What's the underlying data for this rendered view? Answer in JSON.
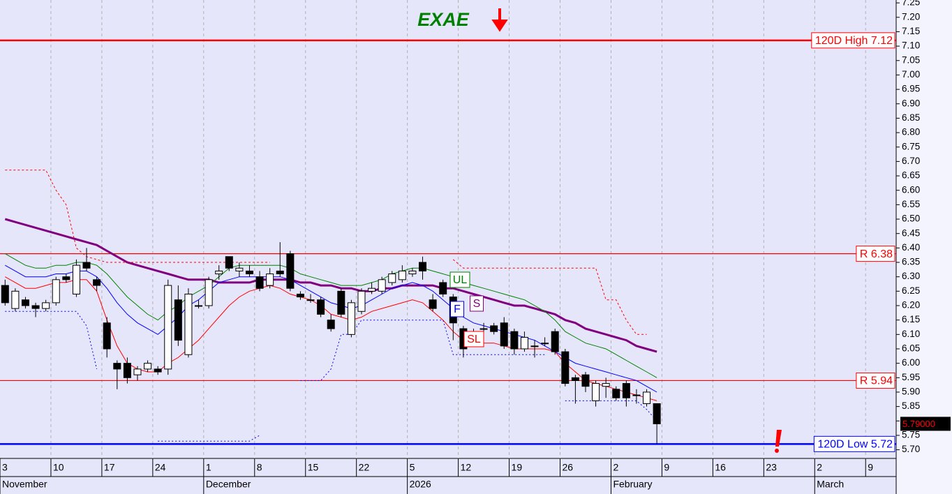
{
  "chart_data": {
    "type": "candlestick",
    "title": "EXAE",
    "categories": [
      "3",
      null,
      null,
      null,
      null,
      "10",
      null,
      null,
      null,
      null,
      "17",
      null,
      null,
      null,
      null,
      "24",
      null,
      null,
      null,
      null,
      "1",
      null,
      null,
      null,
      null,
      "8",
      null,
      null,
      null,
      null,
      "15",
      null,
      null,
      null,
      null,
      "22",
      null,
      null,
      null,
      null,
      "5",
      null,
      null,
      null,
      null,
      "12",
      null,
      null,
      null,
      null,
      "19",
      null,
      null,
      null,
      null,
      "26",
      null,
      null,
      null,
      null,
      "2",
      null,
      null,
      null,
      null,
      "9",
      null,
      null,
      null,
      null,
      "16",
      null,
      null,
      null,
      null,
      "23",
      null,
      null,
      null,
      null,
      "2",
      null,
      null,
      null,
      null,
      "9",
      null,
      null
    ],
    "months": [
      "November",
      null,
      null,
      null,
      null,
      null,
      null,
      null,
      null,
      null,
      null,
      null,
      null,
      null,
      null,
      null,
      null,
      null,
      null,
      null,
      "December",
      null,
      null,
      null,
      null,
      null,
      null,
      null,
      null,
      null,
      null,
      null,
      null,
      null,
      null,
      null,
      null,
      null,
      null,
      null,
      "2026",
      null,
      null,
      null,
      null,
      null,
      null,
      null,
      null,
      null,
      null,
      null,
      null,
      null,
      null,
      null,
      null,
      null,
      null,
      null,
      "February",
      null,
      null,
      null,
      null,
      null,
      null,
      null,
      null,
      null,
      null,
      null,
      null,
      null,
      null,
      null,
      null,
      null,
      null,
      null,
      "March",
      null,
      null,
      null,
      null,
      null,
      null,
      null
    ],
    "open": [
      6.27,
      6.19,
      6.22,
      6.2,
      6.19,
      6.21,
      6.3,
      6.24,
      6.35,
      6.29,
      6.14,
      6.0,
      6.0,
      5.96,
      5.98,
      5.98,
      5.98,
      6.22,
      6.03,
      6.2,
      6.2,
      6.31,
      6.37,
      6.32,
      6.32,
      6.3,
      6.27,
      6.32,
      6.38,
      6.24,
      6.22,
      6.22,
      6.15,
      6.25,
      6.1,
      6.18,
      6.25,
      6.25,
      6.28,
      6.29,
      6.31,
      6.35,
      6.22,
      6.28,
      6.23,
      6.12,
      6.07,
      6.12,
      6.13,
      6.14,
      6.11,
      6.05,
      6.06,
      6.07,
      6.11,
      6.04,
      5.95,
      5.96,
      5.87,
      5.92,
      5.91,
      5.93,
      5.89,
      5.86,
      5.86,
      null,
      null,
      null,
      null,
      null,
      null,
      null,
      null,
      null,
      null,
      null,
      null,
      null,
      null,
      null,
      null,
      null,
      null,
      null,
      null,
      null,
      null,
      null
    ],
    "high": [
      6.29,
      6.26,
      6.23,
      6.21,
      6.22,
      6.3,
      6.31,
      6.36,
      6.4,
      6.3,
      6.16,
      6.01,
      6.02,
      5.99,
      6.01,
      5.99,
      6.29,
      6.27,
      6.26,
      6.22,
      6.3,
      6.34,
      6.37,
      6.35,
      6.34,
      6.32,
      6.33,
      6.42,
      6.39,
      6.25,
      6.24,
      6.23,
      6.17,
      6.26,
      6.22,
      6.26,
      6.28,
      6.3,
      6.32,
      6.34,
      6.33,
      6.37,
      6.24,
      6.29,
      6.24,
      6.13,
      6.12,
      6.14,
      6.14,
      6.16,
      6.12,
      6.11,
      6.08,
      6.09,
      6.12,
      6.05,
      5.96,
      5.97,
      5.94,
      5.95,
      5.92,
      5.94,
      5.91,
      5.91,
      5.86,
      null,
      null,
      null,
      null,
      null,
      null,
      null,
      null,
      null,
      null,
      null,
      null,
      null,
      null,
      null,
      null,
      null,
      null,
      null,
      null,
      null,
      null,
      null
    ],
    "low": [
      6.2,
      6.18,
      6.19,
      6.16,
      6.18,
      6.2,
      6.28,
      6.23,
      6.32,
      6.25,
      6.02,
      5.91,
      5.93,
      5.94,
      5.97,
      5.96,
      5.96,
      6.06,
      6.02,
      6.19,
      6.19,
      6.29,
      6.32,
      6.3,
      6.3,
      6.25,
      6.26,
      6.3,
      6.25,
      6.22,
      6.21,
      6.16,
      6.11,
      6.16,
      6.09,
      6.17,
      6.24,
      6.24,
      6.27,
      6.28,
      6.3,
      6.29,
      6.18,
      6.23,
      6.08,
      6.02,
      6.06,
      6.11,
      6.1,
      6.05,
      6.03,
      6.04,
      6.02,
      6.06,
      6.03,
      5.92,
      5.86,
      5.9,
      5.85,
      5.88,
      5.87,
      5.85,
      5.86,
      5.85,
      5.72,
      null,
      null,
      null,
      null,
      null,
      null,
      null,
      null,
      null,
      null,
      null,
      null,
      null,
      null,
      null,
      null,
      null,
      null,
      null,
      null,
      null,
      null,
      null
    ],
    "close": [
      6.21,
      6.25,
      6.2,
      6.19,
      6.21,
      6.29,
      6.29,
      6.34,
      6.33,
      6.27,
      6.05,
      5.98,
      5.95,
      5.98,
      6.0,
      5.97,
      6.27,
      6.08,
      6.24,
      6.2,
      6.29,
      6.32,
      6.33,
      6.33,
      6.31,
      6.26,
      6.31,
      6.31,
      6.26,
      6.23,
      6.22,
      6.17,
      6.12,
      6.17,
      6.21,
      6.25,
      6.26,
      6.29,
      6.31,
      6.32,
      6.32,
      6.32,
      6.19,
      6.24,
      6.14,
      6.05,
      6.11,
      6.12,
      6.11,
      6.06,
      6.05,
      6.09,
      6.06,
      6.07,
      6.04,
      5.93,
      5.94,
      5.92,
      5.93,
      5.93,
      5.88,
      5.88,
      5.89,
      5.9,
      5.79,
      null,
      null,
      null,
      null,
      null,
      null,
      null,
      null,
      null,
      null,
      null,
      null,
      null,
      null,
      null,
      null,
      null,
      null,
      null,
      null,
      null,
      null,
      null
    ],
    "series": [
      {
        "name": "S",
        "color": "#800080",
        "width": 3,
        "values": [
          6.5,
          6.49,
          6.48,
          6.47,
          6.46,
          6.45,
          6.44,
          6.43,
          6.42,
          6.41,
          6.39,
          6.37,
          6.35,
          6.34,
          6.33,
          6.32,
          6.31,
          6.3,
          6.29,
          6.29,
          6.29,
          6.28,
          6.28,
          6.28,
          6.28,
          6.29,
          6.29,
          6.29,
          6.29,
          6.28,
          6.28,
          6.27,
          6.27,
          6.26,
          6.26,
          6.25,
          6.25,
          6.26,
          6.26,
          6.27,
          6.27,
          6.27,
          6.27,
          6.26,
          6.26,
          6.25,
          6.24,
          6.23,
          6.22,
          6.21,
          6.2,
          6.2,
          6.19,
          6.18,
          6.17,
          6.15,
          6.14,
          6.12,
          6.11,
          6.1,
          6.09,
          6.08,
          6.06,
          6.05,
          6.04,
          null,
          null,
          null,
          null,
          null,
          null,
          null,
          null,
          null,
          null,
          null,
          null,
          null,
          null,
          null,
          null,
          null,
          null,
          null,
          null,
          null,
          null,
          null
        ]
      },
      {
        "name": "UL",
        "color": "#008000",
        "width": 1,
        "values": [
          6.38,
          6.36,
          6.34,
          6.33,
          6.33,
          6.34,
          6.34,
          6.35,
          6.35,
          6.34,
          6.31,
          6.27,
          6.23,
          6.2,
          6.17,
          6.15,
          6.18,
          6.2,
          6.23,
          6.25,
          6.27,
          6.3,
          6.33,
          6.34,
          6.34,
          6.34,
          6.34,
          6.34,
          6.33,
          6.31,
          6.3,
          6.29,
          6.28,
          6.27,
          6.27,
          6.27,
          6.28,
          6.29,
          6.31,
          6.32,
          6.33,
          6.33,
          6.32,
          6.31,
          6.3,
          6.28,
          6.27,
          6.26,
          6.25,
          6.24,
          6.23,
          6.22,
          6.2,
          6.18,
          6.15,
          6.11,
          6.09,
          6.07,
          6.06,
          6.05,
          6.03,
          6.01,
          5.99,
          5.97,
          5.95,
          null,
          null,
          null,
          null,
          null,
          null,
          null,
          null,
          null,
          null,
          null,
          null,
          null,
          null,
          null,
          null,
          null,
          null,
          null,
          null,
          null,
          null,
          null
        ]
      },
      {
        "name": "F",
        "color": "#0000ff",
        "width": 1,
        "values": [
          6.34,
          6.32,
          6.3,
          6.3,
          6.3,
          6.31,
          6.31,
          6.32,
          6.32,
          6.3,
          6.26,
          6.21,
          6.17,
          6.14,
          6.12,
          6.1,
          6.13,
          6.16,
          6.2,
          6.22,
          6.25,
          6.28,
          6.29,
          6.3,
          6.3,
          6.3,
          6.3,
          6.3,
          6.29,
          6.27,
          6.25,
          6.23,
          6.21,
          6.2,
          6.19,
          6.2,
          6.22,
          6.24,
          6.26,
          6.27,
          6.28,
          6.27,
          6.25,
          6.22,
          6.19,
          6.16,
          6.14,
          6.13,
          6.12,
          6.11,
          6.1,
          6.09,
          6.08,
          6.06,
          6.04,
          6.02,
          6.0,
          5.99,
          5.98,
          5.97,
          5.96,
          5.95,
          5.94,
          5.92,
          5.9,
          null,
          null,
          null,
          null,
          null,
          null,
          null,
          null,
          null,
          null,
          null,
          null,
          null,
          null,
          null,
          null,
          null,
          null,
          null,
          null,
          null,
          null,
          null
        ]
      },
      {
        "name": "SL",
        "color": "#ff0000",
        "width": 1,
        "values": [
          6.3,
          6.28,
          6.26,
          6.26,
          6.27,
          6.28,
          6.28,
          6.29,
          6.29,
          6.25,
          6.15,
          6.06,
          6.0,
          5.98,
          5.97,
          5.97,
          6.0,
          6.02,
          6.05,
          6.08,
          6.12,
          6.16,
          6.2,
          6.23,
          6.25,
          6.26,
          6.27,
          6.26,
          6.24,
          6.23,
          6.22,
          6.2,
          6.17,
          6.16,
          6.15,
          6.16,
          6.18,
          6.19,
          6.2,
          6.21,
          6.22,
          6.21,
          6.18,
          6.15,
          6.11,
          6.08,
          6.07,
          6.07,
          6.07,
          6.06,
          6.05,
          6.05,
          6.05,
          6.05,
          6.04,
          6.0,
          5.97,
          5.94,
          5.93,
          5.92,
          5.91,
          5.9,
          5.89,
          5.88,
          5.87,
          null,
          null,
          null,
          null,
          null,
          null,
          null,
          null,
          null,
          null,
          null,
          null,
          null,
          null,
          null,
          null,
          null,
          null,
          null,
          null,
          null,
          null,
          null
        ]
      },
      {
        "color": "#ff0000",
        "width": 1,
        "dash": "3,3",
        "values": [
          6.67,
          6.67,
          6.67,
          6.67,
          6.67,
          6.6,
          6.55,
          6.4,
          6.37,
          6.36,
          6.35,
          6.35,
          6.35,
          6.35,
          6.35,
          6.35,
          6.35,
          6.35,
          6.35,
          6.35,
          6.35,
          6.35,
          6.35,
          6.35,
          6.35,
          6.35,
          6.35,
          null,
          null,
          null,
          null,
          null,
          null,
          null,
          null,
          null,
          null,
          null,
          null,
          null,
          null,
          null,
          null,
          null,
          6.36,
          6.33,
          6.33,
          6.33,
          6.33,
          6.33,
          6.33,
          6.33,
          6.33,
          6.33,
          6.33,
          6.33,
          6.33,
          6.33,
          6.33,
          6.22,
          6.22,
          6.15,
          6.1,
          6.1,
          null,
          null,
          null,
          null,
          null,
          null,
          null,
          null,
          null,
          null,
          null,
          null,
          null,
          null,
          null,
          null,
          null,
          null,
          null,
          null,
          null,
          null,
          null,
          null
        ]
      },
      {
        "color": "#0000ff",
        "width": 1,
        "dash": "2,3",
        "values": [
          6.18,
          6.18,
          6.18,
          6.18,
          6.18,
          6.18,
          6.18,
          6.18,
          6.13,
          5.98,
          null,
          null,
          null,
          null,
          null,
          5.73,
          5.73,
          5.73,
          5.73,
          5.73,
          5.73,
          5.73,
          5.73,
          5.73,
          5.73,
          5.75,
          null,
          null,
          null,
          5.94,
          5.94,
          5.94,
          5.98,
          6.1,
          6.1,
          6.15,
          6.15,
          6.15,
          6.15,
          6.15,
          6.15,
          6.15,
          6.15,
          6.15,
          6.03,
          6.03,
          6.03,
          6.03,
          6.03,
          6.03,
          6.03,
          6.03,
          6.03,
          6.03,
          null,
          5.87,
          5.87,
          5.87,
          5.87,
          5.87,
          5.87,
          5.87,
          5.87,
          5.84,
          5.8,
          null,
          null,
          null,
          null,
          null,
          null,
          null,
          null,
          null,
          null,
          null,
          null,
          null,
          null,
          null,
          null,
          null,
          null,
          null,
          null,
          null,
          null,
          null
        ]
      }
    ],
    "levels": [
      {
        "label": "120D High 7.12",
        "value": 7.12,
        "color": "#ff0000",
        "line_width": 2.5
      },
      {
        "label": "R 6.38",
        "value": 6.38,
        "color": "#ff0000",
        "line_width": 1.2
      },
      {
        "label": "R 5.94",
        "value": 5.94,
        "color": "#ff0000",
        "line_width": 1.2
      },
      {
        "label": "120D Low 5.72",
        "value": 5.72,
        "color": "#0000ff",
        "line_width": 2.5
      }
    ],
    "last_price": {
      "value": 5.79,
      "label": "5.79000"
    },
    "ylim": [
      5.67,
      7.26
    ],
    "yticks": [
      {
        "value": 5.7,
        "label": "5.70"
      },
      5.75,
      {
        "value": 5.8,
        "label": "5.80"
      },
      5.85,
      {
        "value": 5.9,
        "label": "5.90"
      },
      5.95,
      {
        "value": 6.0,
        "label": "6.00"
      },
      6.05,
      {
        "value": 6.1,
        "label": "6.10"
      },
      6.15,
      {
        "value": 6.2,
        "label": "6.20"
      },
      6.25,
      {
        "value": 6.3,
        "label": "6.30"
      },
      6.35,
      {
        "value": 6.4,
        "label": "6.40"
      },
      6.45,
      {
        "value": 6.5,
        "label": "6.50"
      },
      6.55,
      {
        "value": 6.6,
        "label": "6.60"
      },
      6.65,
      {
        "value": 6.7,
        "label": "6.70"
      },
      6.75,
      {
        "value": 6.8,
        "label": "6.80"
      },
      6.85,
      {
        "value": 6.9,
        "label": "6.90"
      },
      6.95,
      {
        "value": 7.0,
        "label": "7.00"
      },
      7.05,
      {
        "value": 7.1,
        "label": "7.10"
      },
      7.15,
      {
        "value": 7.2,
        "label": "7.20"
      },
      7.25
    ],
    "grid": true
  }
}
